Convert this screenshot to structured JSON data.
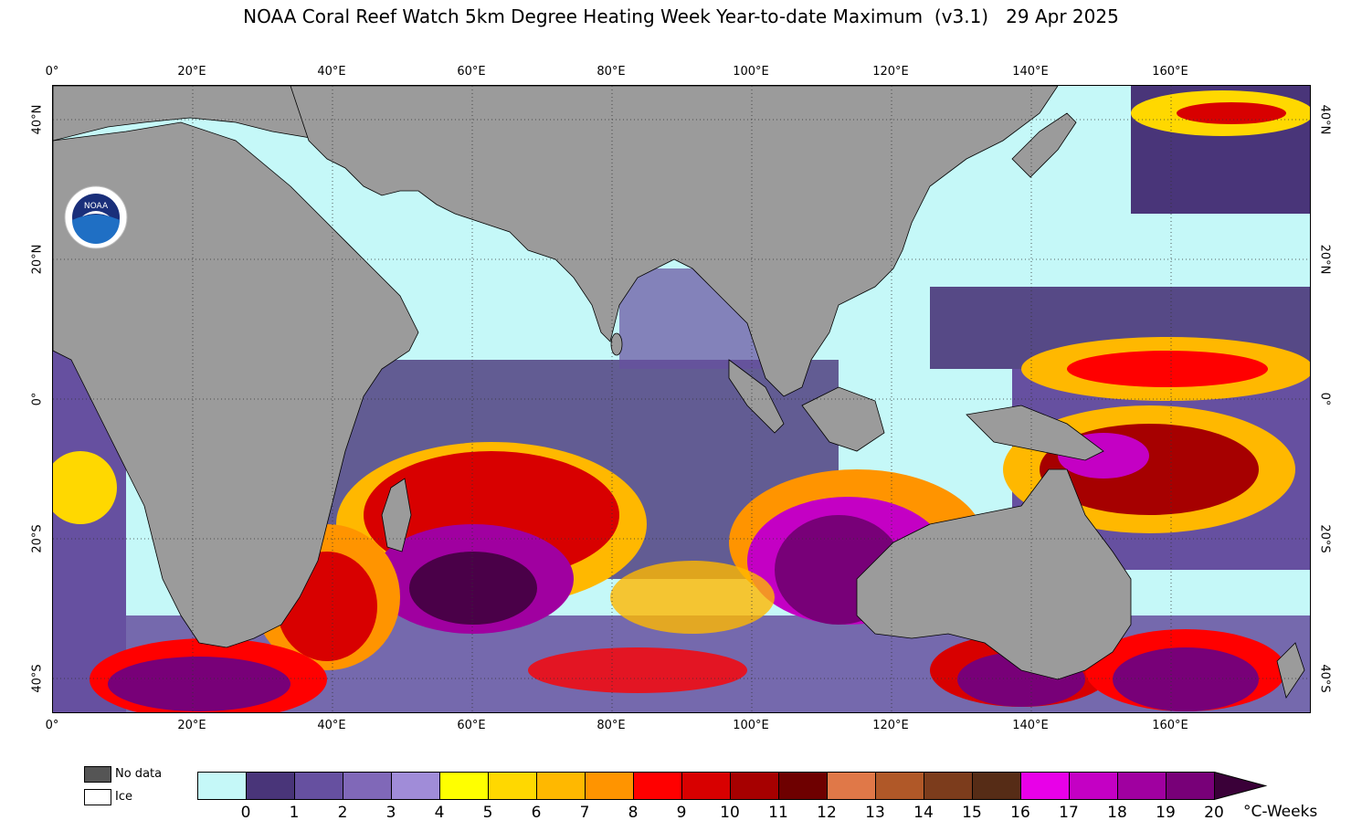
{
  "title": "NOAA Coral Reef Watch 5km Degree Heating Week Year-to-date Maximum  (v3.1)   29 Apr 2025",
  "axes": {
    "lon_ticks": [
      "0°",
      "20°E",
      "40°E",
      "60°E",
      "80°E",
      "100°E",
      "120°E",
      "140°E",
      "160°E"
    ],
    "lat_ticks": [
      "40°N",
      "20°N",
      "0°",
      "20°S",
      "40°S"
    ]
  },
  "legend": {
    "no_data_label": "No data",
    "ice_label": "Ice",
    "no_data_color": "#555555",
    "ice_color": "#ffffff"
  },
  "colorbar": {
    "labels": [
      "0",
      "1",
      "2",
      "3",
      "4",
      "5",
      "6",
      "7",
      "8",
      "9",
      "10",
      "11",
      "12",
      "13",
      "14",
      "15",
      "16",
      "17",
      "18",
      "19",
      "20"
    ],
    "colors": [
      "#c5f8f8",
      "#493579",
      "#6650a0",
      "#8068b8",
      "#a08cd8",
      "#ffff00",
      "#ffd800",
      "#ffb800",
      "#ff9400",
      "#ff0000",
      "#d80000",
      "#a60000",
      "#6e0000",
      "#e07848",
      "#b05828",
      "#7c3c1c",
      "#562c16",
      "#e800e8",
      "#c400c4",
      "#a000a0",
      "#780078"
    ],
    "arrow_color": "#3a0038",
    "units": "°C-Weeks"
  },
  "map_colors": {
    "land": "#9b9b9b",
    "ocean_zero": "#c5f8f8",
    "grid": "#333333"
  },
  "logo": {
    "text": "NOAA",
    "name": "noaa-logo"
  }
}
